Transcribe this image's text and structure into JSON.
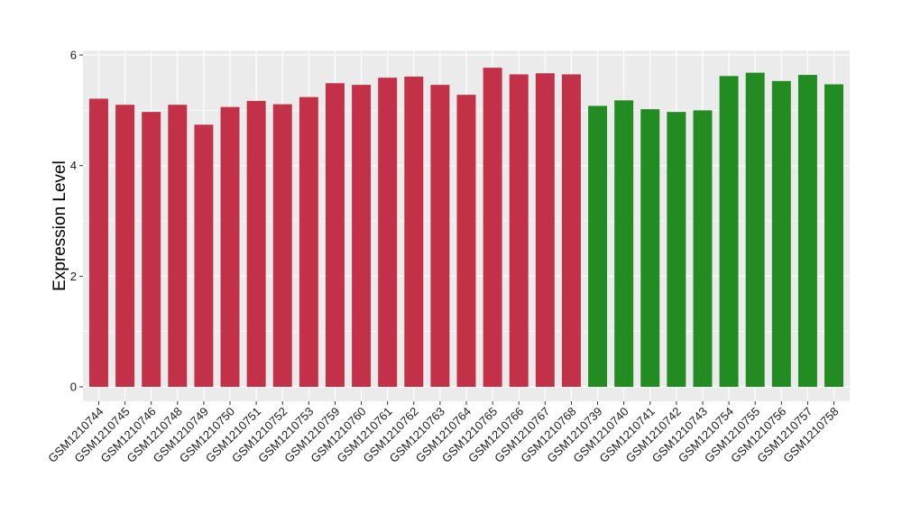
{
  "chart_data": {
    "type": "bar",
    "title": "",
    "xlabel": "",
    "ylabel": "Expression Level",
    "ylim": [
      0,
      6.1
    ],
    "yticks": [
      0,
      2,
      4,
      6
    ],
    "grid": true,
    "legend": "none",
    "colors": {
      "group_1": "#c33149",
      "group_2": "#228b22",
      "panel": "#ebebeb",
      "gridline": "#ffffff"
    },
    "categories": [
      "GSM1210744",
      "GSM1210745",
      "GSM1210746",
      "GSM1210748",
      "GSM1210749",
      "GSM1210750",
      "GSM1210751",
      "GSM1210752",
      "GSM1210753",
      "GSM1210759",
      "GSM1210760",
      "GSM1210761",
      "GSM1210762",
      "GSM1210763",
      "GSM1210764",
      "GSM1210765",
      "GSM1210766",
      "GSM1210767",
      "GSM1210768",
      "GSM1210739",
      "GSM1210740",
      "GSM1210741",
      "GSM1210742",
      "GSM1210743",
      "GSM1210754",
      "GSM1210755",
      "GSM1210756",
      "GSM1210757",
      "GSM1210758"
    ],
    "values": [
      5.21,
      5.1,
      4.97,
      5.1,
      4.74,
      5.06,
      5.17,
      5.11,
      5.24,
      5.49,
      5.46,
      5.59,
      5.61,
      5.46,
      5.28,
      5.77,
      5.65,
      5.67,
      5.65,
      5.08,
      5.18,
      5.02,
      4.97,
      5.0,
      5.62,
      5.68,
      5.53,
      5.64,
      5.47
    ],
    "group": [
      1,
      1,
      1,
      1,
      1,
      1,
      1,
      1,
      1,
      1,
      1,
      1,
      1,
      1,
      1,
      1,
      1,
      1,
      1,
      2,
      2,
      2,
      2,
      2,
      2,
      2,
      2,
      2,
      2
    ]
  }
}
